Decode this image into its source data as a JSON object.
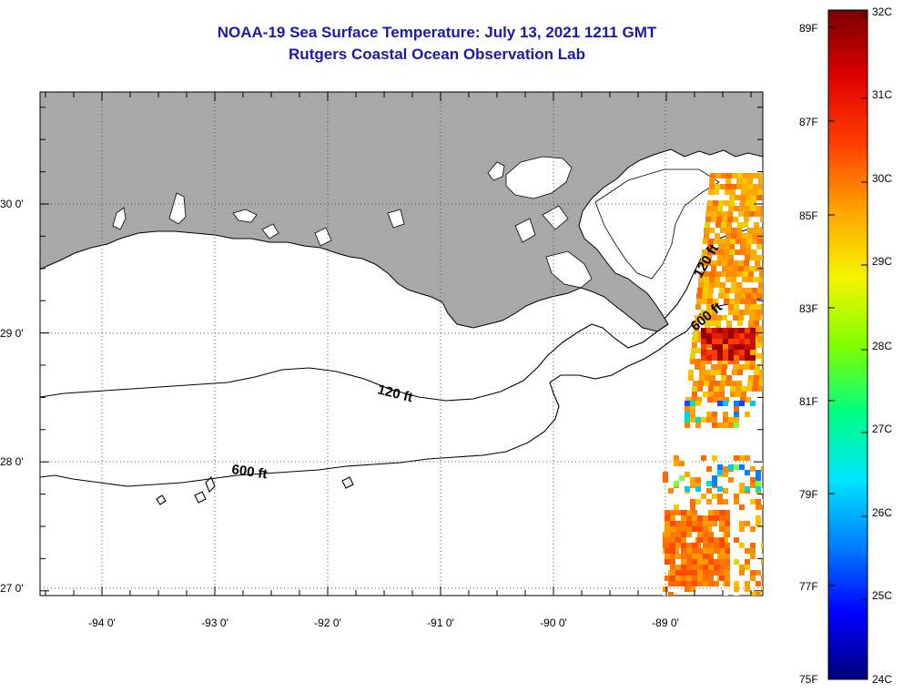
{
  "title": {
    "line1": "NOAA-19 Sea Surface Temperature:  July 13, 2021 1211 GMT",
    "line2": "Rutgers Coastal Ocean Observation Lab"
  },
  "map": {
    "lon_labels": [
      "-94 0'",
      "-93 0'",
      "-92 0'",
      "-91 0'",
      "-90 0'",
      "-89 0'"
    ],
    "lat_labels": [
      "30 0'",
      "29 0'",
      "28 0'",
      "27 0'"
    ],
    "contours": [
      {
        "label": "120 ft"
      },
      {
        "label": "600 ft"
      },
      {
        "label": "120 ft"
      },
      {
        "label": "600 ft"
      }
    ],
    "colors": {
      "land": "#a8a8a8",
      "ocean": "#ffffff",
      "grid": "#555555",
      "title": "#1a1aa6"
    }
  },
  "colorbar": {
    "fahrenheit": [
      "89F",
      "87F",
      "85F",
      "83F",
      "81F",
      "79F",
      "77F",
      "75F"
    ],
    "celsius": [
      "32C",
      "31C",
      "30C",
      "29C",
      "28C",
      "27C",
      "26C",
      "25C",
      "24C"
    ],
    "scale": [
      "#00007a",
      "#0000ff",
      "#0080ff",
      "#00e6ff",
      "#00ff80",
      "#80ff00",
      "#f5f500",
      "#ffa500",
      "#ff4000",
      "#e00000",
      "#7a0000"
    ]
  }
}
